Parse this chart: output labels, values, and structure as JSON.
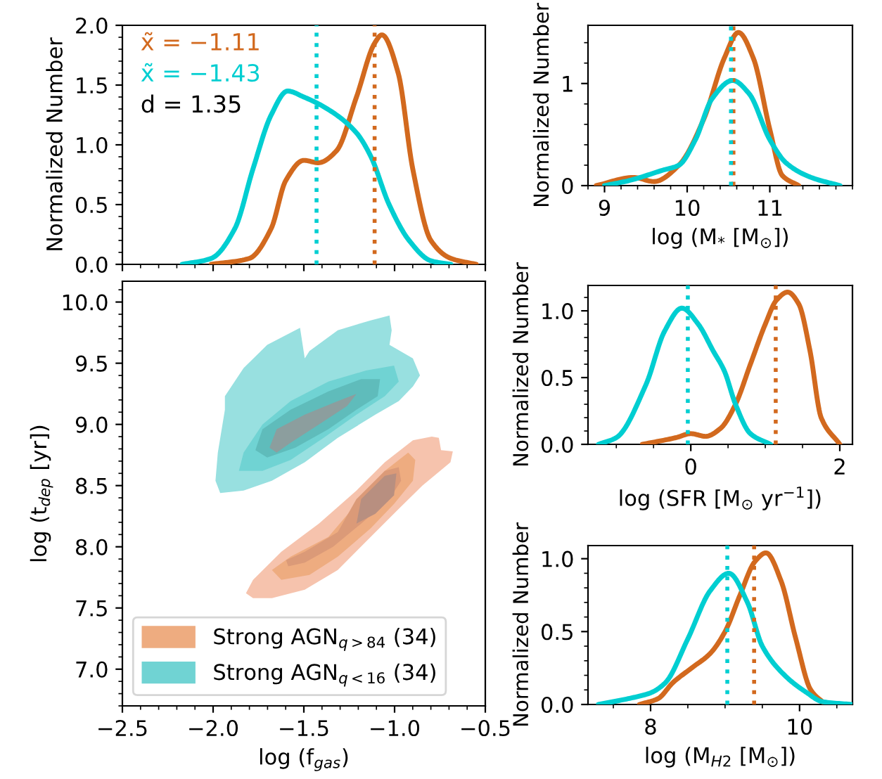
{
  "chart_data": [
    {
      "type": "line",
      "ylabel": "Normalized Number",
      "xlim": [
        -2.5,
        -0.5
      ],
      "xticks": [
        {
          "value": -2.5,
          "label": null
        },
        {
          "value": -2.0,
          "label": null
        },
        {
          "value": -1.5,
          "label": null
        },
        {
          "value": -1.0,
          "label": null
        },
        {
          "value": -0.5,
          "label": null
        }
      ],
      "ylim": [
        0,
        2.0
      ],
      "yticks": [
        {
          "value": 0,
          "label": "0.0"
        },
        0.5,
        {
          "value": 1,
          "label": "1.0"
        },
        1.5,
        {
          "value": 2,
          "label": "2.0"
        }
      ],
      "tick_labels": "y",
      "line_style": "solid",
      "series": [
        {
          "color": "#d2691e",
          "x": [
            -2.01,
            -1.8,
            -1.68,
            -1.6,
            -1.5,
            -1.42,
            -1.32,
            -1.21,
            -1.11,
            -1.07,
            -0.98,
            -0.9,
            -0.8,
            -0.69,
            -0.55
          ],
          "values": [
            0,
            0.05,
            0.3,
            0.7,
            0.87,
            0.85,
            0.95,
            1.4,
            1.85,
            1.92,
            1.6,
            0.8,
            0.2,
            0.05,
            0
          ]
        },
        {
          "color": "#00ced1",
          "x": [
            -2.17,
            -2.01,
            -1.88,
            -1.78,
            -1.68,
            -1.59,
            -1.5,
            -1.37,
            -1.21,
            -1.13,
            -1.03,
            -0.92,
            -0.8,
            -0.69
          ],
          "values": [
            0,
            0.05,
            0.3,
            0.8,
            1.25,
            1.45,
            1.4,
            1.3,
            1.1,
            0.9,
            0.5,
            0.2,
            0.03,
            0
          ]
        }
      ],
      "ref_lines": [
        {
          "axis": "x",
          "value": -1.11,
          "color": "#d2691e",
          "line_style": "dotted"
        },
        {
          "axis": "x",
          "value": -1.43,
          "color": "#00ced1",
          "line_style": "dotted"
        }
      ],
      "annotations": [
        "x̃ = −1.11",
        "x̃ = −1.43",
        "d = 1.35"
      ]
    },
    {
      "type": "area",
      "xlabel": "log (f$_{gas}$)",
      "ylabel": "log (t$_{dep}$ [yr])",
      "xlim": [
        -2.5,
        -0.5
      ],
      "xticks": [
        {
          "value": -2.5,
          "label": "−2.5"
        },
        {
          "value": -2.0,
          "label": "−2.0"
        },
        {
          "value": -1.5,
          "label": "−1.5"
        },
        {
          "value": -1.0,
          "label": "−1.0"
        },
        {
          "value": -0.5,
          "label": "−0.5"
        }
      ],
      "ylim": [
        6.7,
        10.17
      ],
      "yticks": [
        {
          "value": 7,
          "label": "7.0"
        },
        7.5,
        {
          "value": 8,
          "label": "8.0"
        },
        8.5,
        {
          "value": 9,
          "label": "9.0"
        },
        9.5,
        {
          "value": 10,
          "label": "10.0"
        }
      ],
      "legend": "bottom left",
      "series": [
        {
          "color": "#f6c3ad",
          "x": [
            -1.819,
            -1.78,
            -1.624,
            -1.417,
            -1.21,
            -1.054,
            -0.899,
            -0.795,
            -0.756,
            -0.744,
            -0.679,
            -0.692,
            -0.847,
            -0.977,
            -1.132,
            -1.313,
            -1.495,
            -1.676,
            -1.78
          ],
          "values": [
            7.62,
            7.73,
            7.96,
            8.19,
            8.46,
            8.69,
            8.87,
            8.9,
            8.89,
            8.79,
            8.78,
            8.69,
            8.5,
            8.31,
            8.08,
            7.81,
            7.65,
            7.58,
            7.58
          ]
        },
        {
          "name": "Strong AGN$_{q>84}$ (34)",
          "color": "#eeac80",
          "x": [
            -1.676,
            -1.573,
            -1.365,
            -1.21,
            -1.054,
            -0.925,
            -0.886,
            -0.899,
            -1.003,
            -1.132,
            -1.313,
            -1.469,
            -1.624
          ],
          "values": [
            7.81,
            7.92,
            8.08,
            8.35,
            8.62,
            8.77,
            8.71,
            8.54,
            8.35,
            8.15,
            7.92,
            7.77,
            7.73
          ]
        },
        {
          "color": "#db9a78",
          "x": [
            -1.598,
            -1.495,
            -1.313,
            -1.21,
            -1.054,
            -0.977,
            -0.964,
            -1.028,
            -1.184,
            -1.339,
            -1.495,
            -1.586
          ],
          "values": [
            7.89,
            7.96,
            8.12,
            8.39,
            8.62,
            8.65,
            8.54,
            8.39,
            8.19,
            8.0,
            7.87,
            7.84
          ]
        },
        {
          "color": "#b88f80",
          "x": [
            -1.21,
            -1.184,
            -1.054,
            -0.99,
            -1.003,
            -1.106
          ],
          "values": [
            8.19,
            8.39,
            8.58,
            8.6,
            8.42,
            8.27
          ]
        },
        {
          "color": "#98e0e0",
          "x": [
            -1.987,
            -1.974,
            -1.935,
            -1.935,
            -1.832,
            -1.702,
            -1.521,
            -1.495,
            -1.469,
            -1.313,
            -1.132,
            -1.028,
            -1.016,
            -1.028,
            -0.899,
            -0.86,
            -0.899,
            -0.977,
            -1.106,
            -1.313,
            -1.495,
            -1.676,
            -1.832,
            -1.961
          ],
          "values": [
            8.54,
            8.77,
            9.12,
            9.23,
            9.46,
            9.65,
            9.79,
            9.54,
            9.6,
            9.77,
            9.85,
            9.89,
            9.77,
            9.65,
            9.54,
            9.4,
            9.31,
            9.19,
            9.08,
            8.89,
            8.69,
            8.54,
            8.46,
            8.44
          ]
        },
        {
          "name": "Strong AGN$_{q<16}$ (34)",
          "color": "#70d3d3",
          "x": [
            -1.858,
            -1.832,
            -1.728,
            -1.573,
            -1.365,
            -1.158,
            -1.003,
            -0.977,
            -1.054,
            -1.21,
            -1.391,
            -1.573,
            -1.728
          ],
          "values": [
            8.62,
            8.77,
            9.0,
            9.19,
            9.35,
            9.44,
            9.48,
            9.35,
            9.23,
            9.08,
            8.89,
            8.71,
            8.62
          ]
        },
        {
          "color": "#5fbcbb",
          "x": [
            -1.767,
            -1.728,
            -1.573,
            -1.365,
            -1.184,
            -1.08,
            -1.093,
            -1.21,
            -1.365,
            -1.547,
            -1.702
          ],
          "values": [
            8.79,
            8.96,
            9.12,
            9.27,
            9.37,
            9.37,
            9.23,
            9.12,
            8.96,
            8.81,
            8.73
          ]
        },
        {
          "color": "#8c9e9e",
          "x": [
            -1.689,
            -1.65,
            -1.495,
            -1.313,
            -1.21,
            -1.262,
            -1.417,
            -1.573,
            -1.65
          ],
          "values": [
            8.81,
            8.96,
            9.08,
            9.19,
            9.25,
            9.15,
            9.0,
            8.85,
            8.77
          ]
        }
      ]
    },
    {
      "type": "line",
      "xlabel": "log (M$_{*}$ [M$_{⊙}$])",
      "ylabel": "Normalized Number",
      "xlim": [
        8.8,
        12.0
      ],
      "xticks": [
        9,
        10,
        11
      ],
      "ylim": [
        0,
        1.57
      ],
      "yticks": [
        0,
        1
      ],
      "line_style": "solid",
      "series": [
        {
          "color": "#d2691e",
          "x": [
            8.9,
            9.35,
            9.6,
            9.9,
            10.2,
            10.45,
            10.62,
            10.8,
            11.0,
            11.15,
            11.35
          ],
          "values": [
            0,
            0.08,
            0.04,
            0.2,
            0.65,
            1.25,
            1.5,
            1.25,
            0.55,
            0.1,
            0
          ]
        },
        {
          "color": "#00ced1",
          "x": [
            9.0,
            9.3,
            9.7,
            9.9,
            10.1,
            10.3,
            10.55,
            10.75,
            11.0,
            11.2,
            11.5,
            11.85
          ],
          "values": [
            0,
            0.05,
            0.15,
            0.2,
            0.45,
            0.85,
            1.03,
            0.9,
            0.45,
            0.22,
            0.08,
            0
          ]
        }
      ],
      "ref_lines": [
        {
          "axis": "x",
          "value": 10.56,
          "color": "#d2691e",
          "line_style": "dotted"
        },
        {
          "axis": "x",
          "value": 10.53,
          "color": "#00ced1",
          "line_style": "dotted"
        }
      ]
    },
    {
      "type": "line",
      "xlabel": "log (SFR [M$_{⊙}$ yr$^{−1}$])",
      "ylabel": "Normalized Number",
      "xlim": [
        -1.38,
        2.17
      ],
      "xticks": [
        0,
        2
      ],
      "ylim": [
        0,
        1.19
      ],
      "yticks": [
        {
          "value": 0,
          "label": "0.0"
        },
        0.5,
        {
          "value": 1,
          "label": "1.0"
        }
      ],
      "line_style": "solid",
      "series": [
        {
          "color": "#d2691e",
          "x": [
            -0.65,
            -0.2,
            0.0,
            0.2,
            0.4,
            0.6,
            0.8,
            1.0,
            1.15,
            1.3,
            1.45,
            1.6,
            1.75,
            2.0
          ],
          "values": [
            0,
            0.05,
            0.08,
            0.06,
            0.12,
            0.3,
            0.6,
            0.9,
            1.08,
            1.14,
            1.05,
            0.7,
            0.2,
            0
          ]
        },
        {
          "color": "#00ced1",
          "x": [
            -1.24,
            -1.0,
            -0.6,
            -0.35,
            -0.12,
            0.1,
            0.3,
            0.45,
            0.6,
            0.8,
            1.07
          ],
          "values": [
            0,
            0.05,
            0.45,
            0.85,
            1.02,
            0.9,
            0.7,
            0.55,
            0.3,
            0.08,
            0
          ]
        }
      ],
      "ref_lines": [
        {
          "axis": "x",
          "value": 1.14,
          "color": "#d2691e",
          "line_style": "dotted"
        },
        {
          "axis": "x",
          "value": -0.04,
          "color": "#00ced1",
          "line_style": "dotted"
        }
      ]
    },
    {
      "type": "line",
      "xlabel": "log (M$_{H2}$ [M$_{⊙}$])",
      "ylabel": "Normalized Number",
      "xlim": [
        7.16,
        10.71
      ],
      "xticks": [
        8,
        10
      ],
      "ylim": [
        0,
        1.09
      ],
      "yticks": [
        {
          "value": 0,
          "label": "0.0"
        },
        0.5,
        {
          "value": 1,
          "label": "1.0"
        }
      ],
      "line_style": "solid",
      "series": [
        {
          "color": "#d2691e",
          "x": [
            7.85,
            8.1,
            8.3,
            8.55,
            8.8,
            9.0,
            9.2,
            9.4,
            9.55,
            9.75,
            9.95,
            10.15,
            10.35
          ],
          "values": [
            0,
            0.04,
            0.15,
            0.25,
            0.35,
            0.5,
            0.75,
            0.98,
            1.04,
            0.85,
            0.45,
            0.1,
            0
          ]
        },
        {
          "color": "#00ced1",
          "x": [
            7.3,
            7.7,
            8.0,
            8.2,
            8.5,
            8.8,
            9.05,
            9.3,
            9.5,
            9.8,
            10.1,
            10.3,
            10.7
          ],
          "values": [
            0,
            0.04,
            0.08,
            0.15,
            0.45,
            0.78,
            0.9,
            0.7,
            0.4,
            0.2,
            0.08,
            0.02,
            0
          ]
        }
      ],
      "ref_lines": [
        {
          "axis": "x",
          "value": 9.39,
          "color": "#d2691e",
          "line_style": "dotted"
        },
        {
          "axis": "x",
          "value": 9.03,
          "color": "#00ced1",
          "line_style": "dotted"
        }
      ]
    }
  ]
}
